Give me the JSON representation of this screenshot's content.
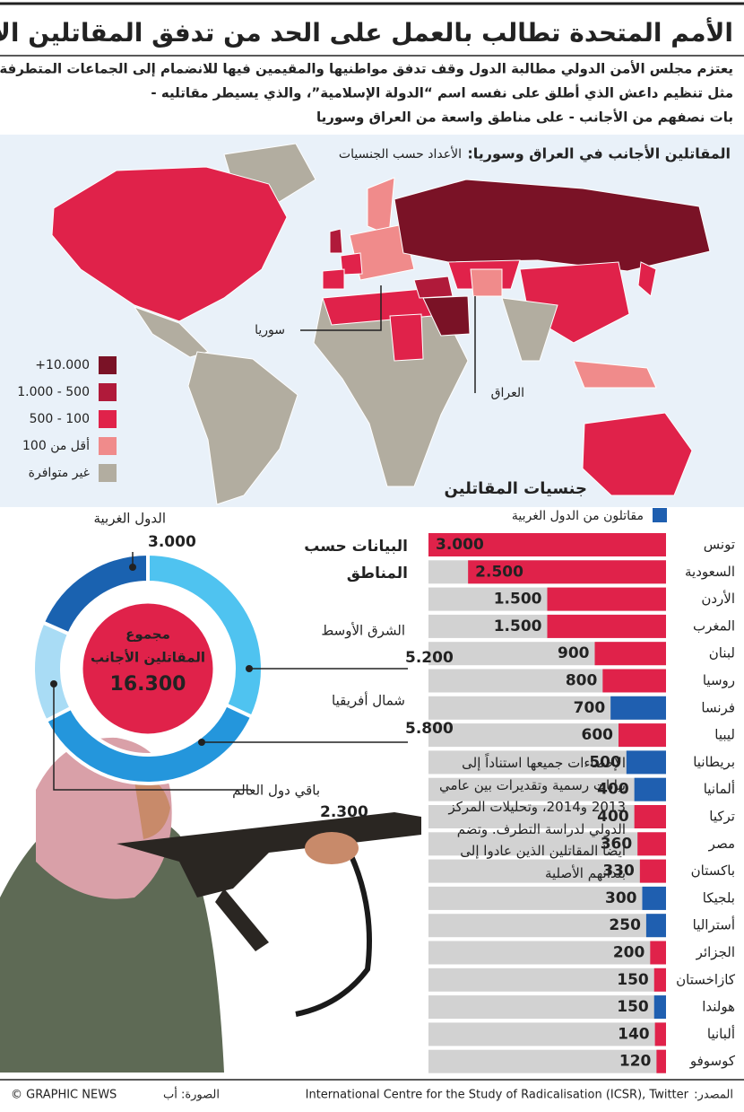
{
  "header": {
    "title": "الأمم المتحدة تطالب بالعمل على الحد من تدفق المقاتلين الأجانب",
    "subtitle_lines": [
      "يعتزم مجلس الأمن الدولي مطالبة الدول وقف تدفق مواطنيها والمقيمين فيها للانضمام إلى الجماعات المتطرفة",
      "مثل تنظيم داعش الذي أطلق على نفسه اسم “الدولة الإسلامية”، والذي يسيطر مقاتليه -",
      "بات نصفهم من الأجانب - على مناطق واسعة من العراق وسوريا"
    ]
  },
  "map": {
    "title": "المقاتلين الأجانب في العراق وسوريا:",
    "subtitle": "الأعداد حسب الجنسيات",
    "labels": [
      "سوريا",
      "العراق"
    ],
    "legend": [
      {
        "label": "+10.000",
        "color": "#7a1226"
      },
      {
        "label": "1.000 - 500",
        "color": "#b01a3a"
      },
      {
        "label": "500 - 100",
        "color": "#e0224a"
      },
      {
        "label": "أقل من 100",
        "color": "#f08b8b"
      },
      {
        "label": "غير متوافرة",
        "color": "#b2ada0"
      }
    ]
  },
  "chart_data": [
    {
      "type": "bar",
      "title": "جنسيات المقاتلين",
      "categories": [
        "تونس",
        "السعودية",
        "الأردن",
        "المغرب",
        "لبنان",
        "روسيا",
        "فرنسا",
        "ليبيا",
        "بريطانيا",
        "ألمانيا",
        "تركيا",
        "مصر",
        "باكستان",
        "بلجيكا",
        "أستراليا",
        "الجزائر",
        "كازاخستان",
        "هولندا",
        "ألبانيا",
        "كوسوفو"
      ],
      "values": [
        3000,
        2500,
        1500,
        1500,
        900,
        800,
        700,
        600,
        500,
        400,
        400,
        360,
        330,
        300,
        250,
        200,
        150,
        150,
        140,
        120
      ],
      "value_labels": [
        "3.000",
        "2.500",
        "1.500",
        "1.500",
        "900",
        "800",
        "700",
        "600",
        "500",
        "400",
        "400",
        "360",
        "330",
        "300",
        "250",
        "200",
        "150",
        "150",
        "140",
        "120"
      ],
      "colors": [
        "#e0224a",
        "#e0224a",
        "#e0224a",
        "#e0224a",
        "#e0224a",
        "#e0224a",
        "#1f5fb0",
        "#e0224a",
        "#1f5fb0",
        "#1f5fb0",
        "#e0224a",
        "#e0224a",
        "#e0224a",
        "#1f5fb0",
        "#1f5fb0",
        "#e0224a",
        "#e0224a",
        "#1f5fb0",
        "#e0224a",
        "#e0224a"
      ],
      "legend": [
        {
          "name": "مقاتلون من الدول الغربية",
          "color": "#1f5fb0"
        }
      ]
    },
    {
      "type": "donut",
      "title": "البيانات حسب المناطق",
      "categories": [
        "الشرق الأوسط",
        "شمال أفريقيا",
        "باقي دول العالم",
        "الدول الغربية"
      ],
      "values": [
        5200,
        5800,
        2300,
        3000
      ],
      "value_labels": [
        "5.200",
        "5.800",
        "2.300",
        "3.000"
      ],
      "colors": [
        "#4fc3f0",
        "#2496dc",
        "#a9dcf5",
        "#1a62b0"
      ],
      "center_title": [
        "مجموع",
        "المقاتلين الأجانب"
      ],
      "total": {
        "value": 16300,
        "label": "16.300"
      },
      "center_color": "#e0224a"
    }
  ],
  "note": "الإحصاءات جميعها استناداً إلى بيانات رسمية وتقديرات بين عامي 2013 و2014، وتحليلات المركز الدولي لدراسة التطرف. وتضم أيضاً المقاتلين الذين عادوا إلى بلدانهم الأصلية",
  "footer": {
    "copyright": "© GRAPHIC NEWS",
    "photo_credit": "الصورة: أب",
    "source_label": "المصدر:",
    "source": "International Centre for the Study of Radicalisation (ICSR), Twitter"
  }
}
